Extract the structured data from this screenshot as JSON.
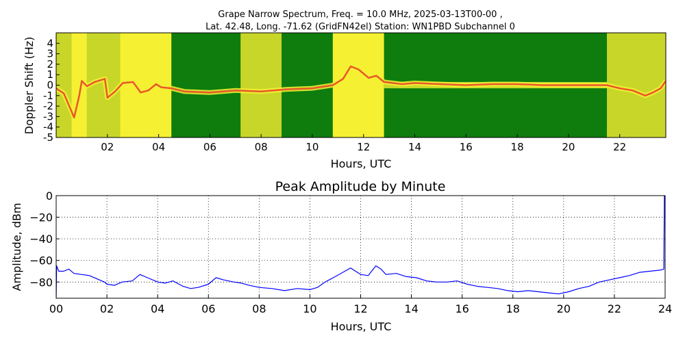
{
  "figure": {
    "title_line1": "Grape Narrow Spectrum, Freq. = 10.0 MHz, 2025-03-13T00-00 ,",
    "title_line2": "Lat.  42.48, Long. -71.62 (GridFN42el) Station: WN1PBD Subchannel 0"
  },
  "chart_data": [
    {
      "type": "heatmap",
      "xlabel": "Hours, UTC",
      "ylabel": "Doppler Shift (Hz)",
      "xlim": [
        0,
        23.8
      ],
      "ylim": [
        -5,
        5
      ],
      "x_ticks": [
        2,
        4,
        6,
        8,
        10,
        12,
        14,
        16,
        18,
        20,
        22
      ],
      "x_tick_labels": [
        "02",
        "04",
        "06",
        "08",
        "10",
        "12",
        "14",
        "16",
        "18",
        "20",
        "22"
      ],
      "y_ticks": [
        4,
        3,
        2,
        1,
        0,
        -1,
        -2,
        -3,
        -4,
        -5
      ],
      "y_tick_labels": [
        "4",
        "3",
        "2",
        "1",
        "0",
        "-1",
        "-2",
        "-3",
        "-4",
        "-5"
      ],
      "colors": {
        "low": "#0e7d0e",
        "mid": "#c8d629",
        "high": "#f5f032",
        "peak": "#e8572a"
      },
      "background_bands": [
        {
          "x": [
            0.0,
            0.6
          ],
          "level": "mid"
        },
        {
          "x": [
            0.6,
            1.2
          ],
          "level": "high"
        },
        {
          "x": [
            1.2,
            2.5
          ],
          "level": "mid"
        },
        {
          "x": [
            2.5,
            4.5
          ],
          "level": "high"
        },
        {
          "x": [
            4.5,
            7.2
          ],
          "level": "low"
        },
        {
          "x": [
            7.2,
            8.8
          ],
          "level": "mid"
        },
        {
          "x": [
            8.8,
            10.8
          ],
          "level": "low"
        },
        {
          "x": [
            10.8,
            12.8
          ],
          "level": "high"
        },
        {
          "x": [
            12.8,
            21.5
          ],
          "level": "low"
        },
        {
          "x": [
            21.5,
            23.8
          ],
          "level": "mid"
        }
      ],
      "trace": {
        "x": [
          0.0,
          0.3,
          0.6,
          0.7,
          0.9,
          1.0,
          1.2,
          1.5,
          1.9,
          2.0,
          2.3,
          2.6,
          3.0,
          3.3,
          3.6,
          3.9,
          4.1,
          4.5,
          5.0,
          6.0,
          7.0,
          8.0,
          9.0,
          10.0,
          10.8,
          11.2,
          11.5,
          11.8,
          12.2,
          12.5,
          12.8,
          13.5,
          14.0,
          15.0,
          16.0,
          17.0,
          18.0,
          19.0,
          20.0,
          20.5,
          21.0,
          21.5,
          22.0,
          22.5,
          23.0,
          23.3,
          23.6,
          23.8
        ],
        "y": [
          -0.3,
          -0.8,
          -2.5,
          -3.1,
          -1.0,
          0.4,
          -0.1,
          0.3,
          0.6,
          -1.2,
          -0.6,
          0.2,
          0.3,
          -0.7,
          -0.5,
          0.1,
          -0.2,
          -0.3,
          -0.6,
          -0.7,
          -0.5,
          -0.6,
          -0.4,
          -0.3,
          0.0,
          0.6,
          1.8,
          1.5,
          0.7,
          0.9,
          0.3,
          0.1,
          0.2,
          0.1,
          0.0,
          0.1,
          0.1,
          0.0,
          0.0,
          0.0,
          0.0,
          0.0,
          -0.3,
          -0.5,
          -1.0,
          -0.7,
          -0.3,
          0.4
        ]
      }
    },
    {
      "type": "line",
      "title": "Peak Amplitude by Minute",
      "xlabel": "Hours, UTC",
      "ylabel": "Amplitude, dBm",
      "xlim": [
        0,
        24
      ],
      "ylim": [
        -95,
        0
      ],
      "grid": true,
      "x_ticks": [
        0,
        2,
        4,
        6,
        8,
        10,
        12,
        14,
        16,
        18,
        20,
        22,
        24
      ],
      "x_tick_labels": [
        "00",
        "02",
        "04",
        "06",
        "08",
        "10",
        "12",
        "14",
        "16",
        "18",
        "20",
        "22",
        "24"
      ],
      "y_ticks": [
        0,
        -20,
        -40,
        -60,
        -80
      ],
      "y_tick_labels": [
        "0",
        "−20",
        "−40",
        "−60",
        "−80"
      ],
      "line_color": "#0000ff",
      "series": [
        {
          "x": [
            0.0,
            0.02,
            0.1,
            0.3,
            0.5,
            0.7,
            1.0,
            1.3,
            1.6,
            1.9,
            2.0,
            2.3,
            2.6,
            3.0,
            3.3,
            3.6,
            4.0,
            4.3,
            4.6,
            5.0,
            5.3,
            5.6,
            6.0,
            6.3,
            6.6,
            7.0,
            7.3,
            7.6,
            8.0,
            8.5,
            9.0,
            9.5,
            10.0,
            10.3,
            10.6,
            11.0,
            11.3,
            11.6,
            12.0,
            12.3,
            12.6,
            12.8,
            13.0,
            13.4,
            13.8,
            14.2,
            14.6,
            15.0,
            15.4,
            15.8,
            16.2,
            16.6,
            17.0,
            17.4,
            17.8,
            18.2,
            18.6,
            19.0,
            19.4,
            19.8,
            20.2,
            20.6,
            21.0,
            21.4,
            21.8,
            22.2,
            22.6,
            23.0,
            23.4,
            23.8,
            23.95,
            23.97
          ],
          "y": [
            -95,
            -65,
            -70,
            -70,
            -68,
            -72,
            -73,
            -74,
            -77,
            -80,
            -82,
            -83,
            -80,
            -79,
            -73,
            -76,
            -80,
            -81,
            -79,
            -84,
            -86,
            -85,
            -82,
            -76,
            -78,
            -80,
            -81,
            -83,
            -85,
            -86,
            -88,
            -86,
            -87,
            -85,
            -80,
            -75,
            -71,
            -67,
            -73,
            -74,
            -65,
            -68,
            -73,
            -72,
            -75,
            -76,
            -79,
            -80,
            -80,
            -79,
            -82,
            -84,
            -85,
            -86,
            -88,
            -89,
            -88,
            -89,
            -90,
            -91,
            -89,
            -86,
            -84,
            -80,
            -78,
            -76,
            -74,
            -71,
            -70,
            -69,
            -68,
            0
          ]
        }
      ]
    }
  ]
}
